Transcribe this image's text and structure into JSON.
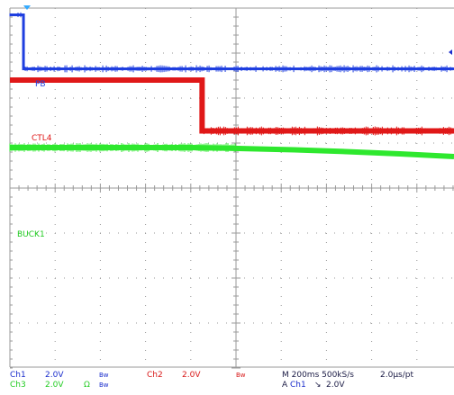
{
  "colors": {
    "background": "#ffffff",
    "grid": "#9a9a9a",
    "ch1": "#1f3fe0",
    "ch2": "#e01818",
    "ch3": "#2ee82e",
    "ch3_text": "#22cc22",
    "status_blue": "#1a2dcc",
    "status_red": "#d81818",
    "status_dark": "#1a1a44",
    "marker": "#33aaff"
  },
  "traces": {
    "ch1": {
      "label": "PB",
      "high_div": 0.15,
      "fall_div": 0.3,
      "low_div": 1.35
    },
    "ch2": {
      "label": "CTL4",
      "high_div": 1.6,
      "fall_div": 4.25,
      "low_div": 2.73
    },
    "ch3": {
      "label": "BUCK1",
      "start_div": 3.1,
      "knee_div": 4.0,
      "end_div": 3.3
    }
  },
  "status": {
    "ch1": {
      "name": "Ch1",
      "scale": "2.0V",
      "bw": "Bw"
    },
    "ch2": {
      "name": "Ch2",
      "scale": "2.0V",
      "bw": "Bw"
    },
    "ch3": {
      "name": "Ch3",
      "scale": "2.0V",
      "omega": "Ω",
      "bw": "Bw"
    },
    "timebase": "M 200ms 500kS/s",
    "sample": "2.0µs/pt",
    "trigger": {
      "prefix": "A",
      "channel": "Ch1",
      "slope": "↘",
      "level": "2.0V"
    }
  },
  "markers": {
    "trigger_time": "trigger-position-marker",
    "trigger_level": "trigger-level-marker"
  }
}
